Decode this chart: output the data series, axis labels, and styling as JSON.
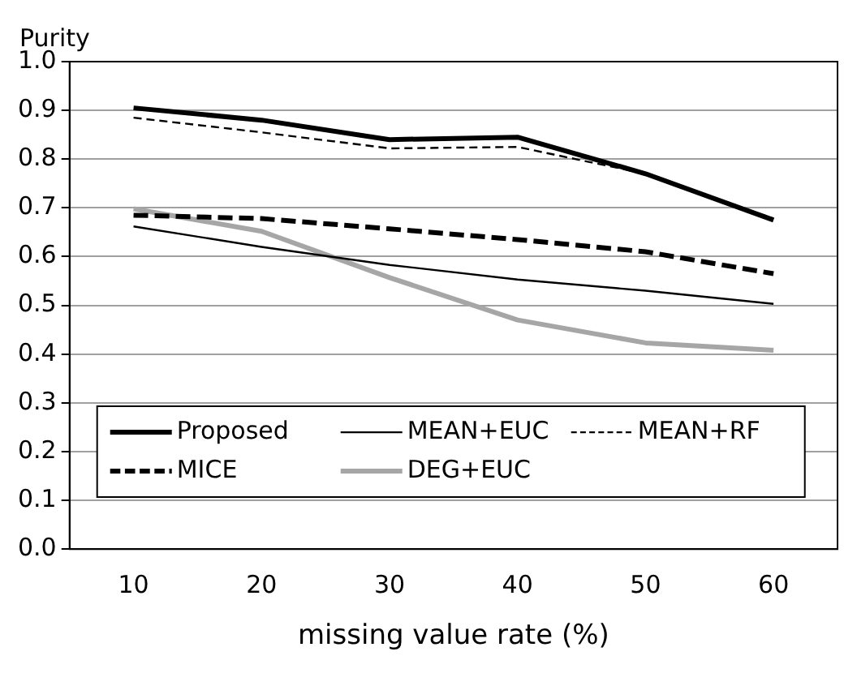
{
  "chart_data": {
    "type": "line",
    "xlabel": "missing value rate (%)",
    "ylabel": "Purity",
    "categories": [
      "10",
      "20",
      "30",
      "40",
      "50",
      "60"
    ],
    "series": [
      {
        "name": "Proposed",
        "color": "#000000",
        "line_style": "solid",
        "values": [
          0.905,
          0.88,
          0.84,
          0.845,
          0.77,
          0.675
        ]
      },
      {
        "name": "MEAN+EUC",
        "color": "#000000",
        "line_style": "solid",
        "values": [
          0.662,
          0.62,
          0.583,
          0.553,
          0.53,
          0.503
        ]
      },
      {
        "name": "MEAN+RF",
        "color": "#000000",
        "line_style": "dashed",
        "values": [
          0.885,
          0.855,
          0.822,
          0.825,
          0.77,
          0.678
        ]
      },
      {
        "name": "MICE",
        "color": "#000000",
        "line_style": "dashed",
        "values": [
          0.685,
          0.678,
          0.657,
          0.635,
          0.61,
          0.565
        ]
      },
      {
        "name": "DEG+EUC",
        "color": "#a6a6a6",
        "line_style": "solid",
        "values": [
          0.698,
          0.652,
          0.557,
          0.47,
          0.423,
          0.408
        ]
      }
    ],
    "ylim": [
      0,
      1
    ],
    "yticks": [
      {
        "value": 0,
        "label": "0.0"
      },
      {
        "value": 0.1,
        "label": "0.1"
      },
      {
        "value": 0.2,
        "label": "0.2"
      },
      {
        "value": 0.3,
        "label": "0.3"
      },
      {
        "value": 0.4,
        "label": "0.4"
      },
      {
        "value": 0.5,
        "label": "0.5"
      },
      {
        "value": 0.6,
        "label": "0.6"
      },
      {
        "value": 0.7,
        "label": "0.7"
      },
      {
        "value": 0.8,
        "label": "0.8"
      },
      {
        "value": 0.9,
        "label": "0.9"
      },
      {
        "value": 1,
        "label": "1.0"
      }
    ],
    "grid": "y",
    "legend": "bottom",
    "marker": "none"
  }
}
